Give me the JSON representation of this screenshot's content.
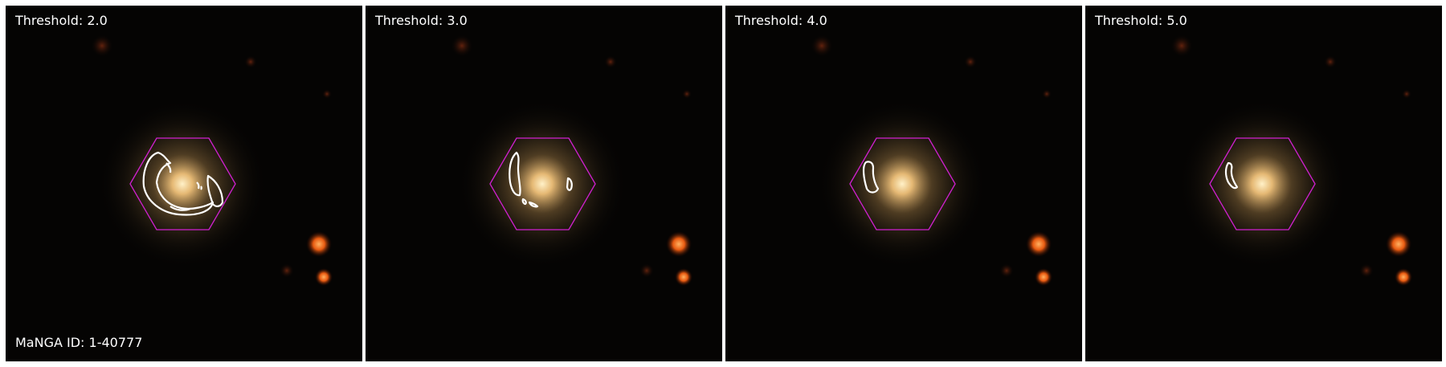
{
  "panels": [
    {
      "threshold_label": "Threshold: 2.0"
    },
    {
      "threshold_label": "Threshold: 3.0"
    },
    {
      "threshold_label": "Threshold: 4.0"
    },
    {
      "threshold_label": "Threshold: 5.0"
    }
  ],
  "galaxy_id_label": "MaNGA ID: 1-40777",
  "colors": {
    "background": "#050403",
    "hexagon": "#d020d0",
    "contour": "#ffffff",
    "galaxy_core": "#ffe8b0",
    "star": "#ff7a1a"
  }
}
